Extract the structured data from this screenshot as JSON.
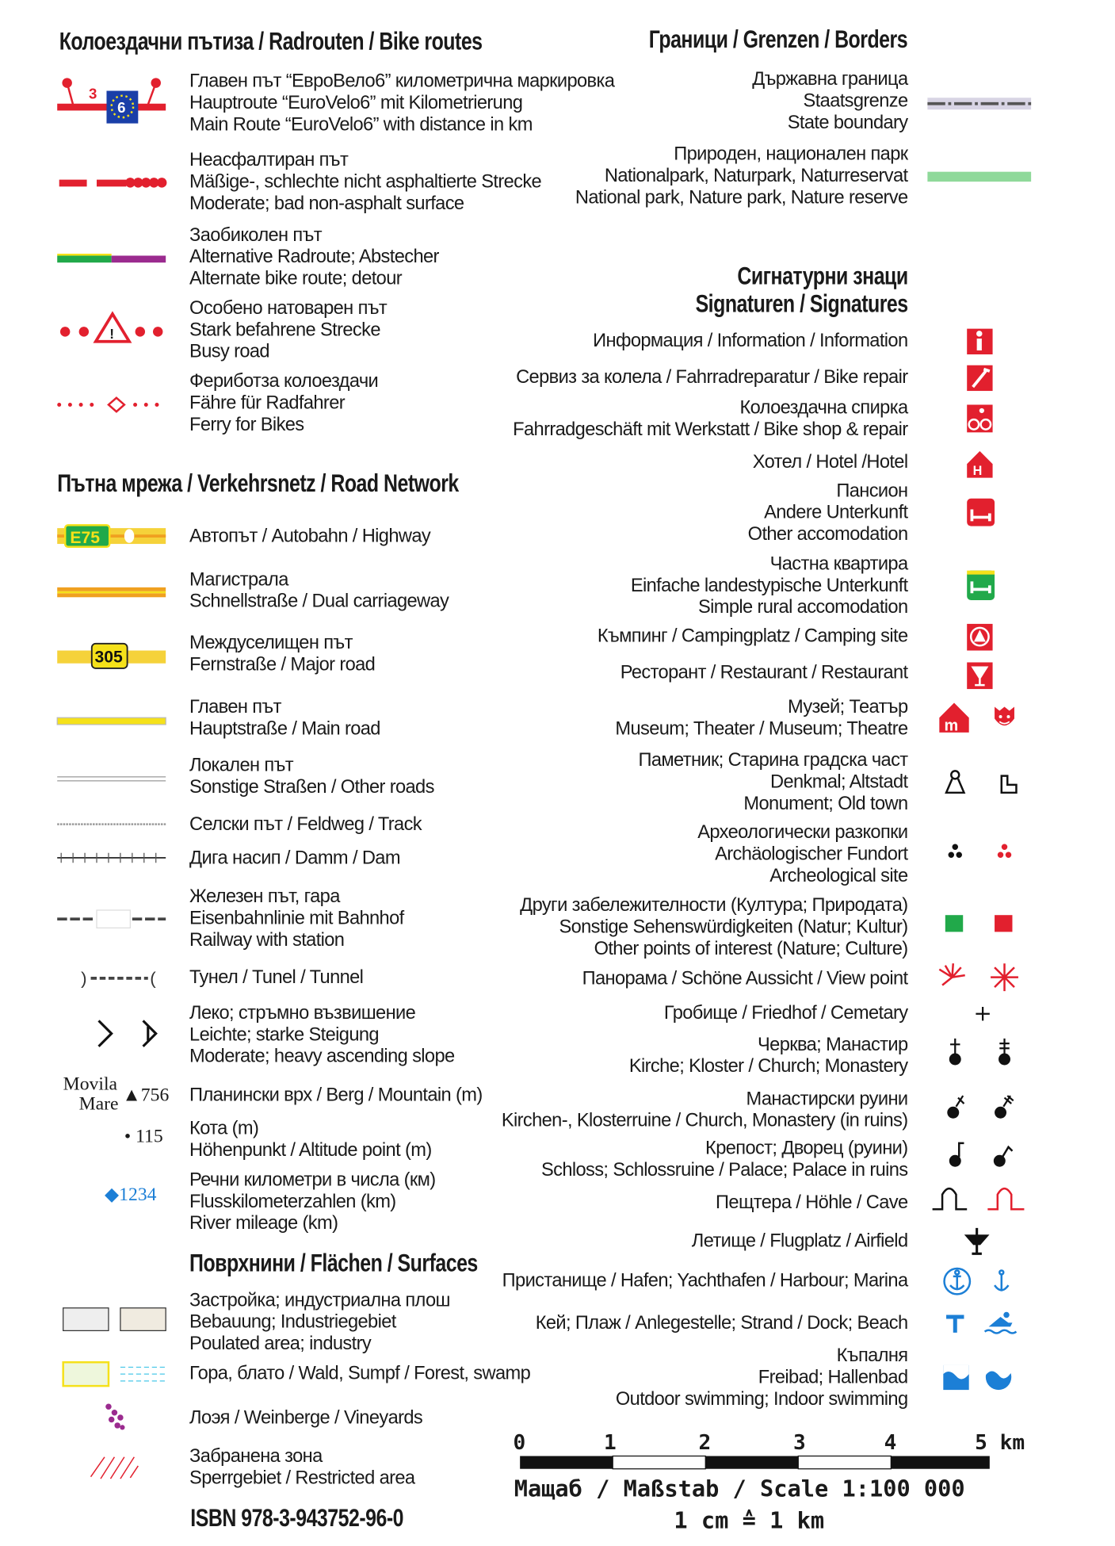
{
  "bike_routes": {
    "heading": "Колоездачни пътиза / Radrouten / Bike routes",
    "items": [
      {
        "symbol": "eurovelo-route",
        "lines": [
          "Главен път “ЕвроВело6” километрична маркировка",
          "Hauptroute “EuroVelo6” mit Kilometrierung",
          "Main Route “EuroVelo6” with distance in km"
        ]
      },
      {
        "symbol": "unpaved-road",
        "lines": [
          "Неасфалтиран път",
          "Mäßige-, schlechte nicht asphaltierte Strecke",
          "Moderate; bad non-asphalt surface"
        ]
      },
      {
        "symbol": "alternate-route",
        "lines": [
          "Заобиколен път",
          "Alternative Radroute; Abstecher",
          "Alternate bike route; detour"
        ]
      },
      {
        "symbol": "busy-road",
        "lines": [
          "Особено натоварен път",
          "Stark befahrene Strecke",
          "Busy road"
        ]
      },
      {
        "symbol": "ferry",
        "lines": [
          "Фериботза колоездачи",
          "Fähre für Radfahrer",
          "Ferry for Bikes"
        ]
      }
    ],
    "eurovelo_marker": {
      "km": "3",
      "route": "6"
    }
  },
  "borders": {
    "heading": "Граници / Grenzen / Borders",
    "items": [
      {
        "symbol": "state-boundary",
        "lines": [
          "Държавна граница",
          "Staatsgrenze",
          "State boundary"
        ]
      },
      {
        "symbol": "nature-park",
        "lines": [
          "Природен, национален парк",
          "Nationalpark, Naturpark, Naturreservat",
          "National park, Nature park, Nature reserve"
        ]
      }
    ]
  },
  "signatures": {
    "heading": [
      "Сигнатурни знаци",
      "Signaturen / Signatures"
    ],
    "items": [
      {
        "icons": [
          "information-icon"
        ],
        "lines": [
          "Информация / Information / Information"
        ]
      },
      {
        "icons": [
          "bike-repair-icon"
        ],
        "lines": [
          "Сервиз за колела / Fahrradreparatur / Bike repair"
        ]
      },
      {
        "icons": [
          "bike-shop-icon"
        ],
        "lines": [
          "Колоездачна спирка",
          "Fahrradgeschäft mit Werkstatt / Bike shop & repair"
        ]
      },
      {
        "icons": [
          "hotel-icon"
        ],
        "lines": [
          "Хотел / Hotel /Hotel"
        ]
      },
      {
        "icons": [
          "other-accommodation-icon"
        ],
        "lines": [
          "Пансион",
          "Andere Unterkunft",
          "Other accomodation"
        ]
      },
      {
        "icons": [
          "rural-accommodation-icon"
        ],
        "lines": [
          "Частна квартира",
          "Einfache landestypische Unterkunft",
          "Simple rural accomodation"
        ]
      },
      {
        "icons": [
          "camping-icon"
        ],
        "lines": [
          "Къмпинг / Campingplatz / Camping site"
        ]
      },
      {
        "icons": [
          "restaurant-icon"
        ],
        "lines": [
          "Ресторант / Restaurant /  Restaurant"
        ]
      },
      {
        "icons": [
          "museum-icon",
          "theatre-icon"
        ],
        "lines": [
          "Музей; Театър",
          "Museum; Theater / Museum; Theatre"
        ]
      },
      {
        "icons": [
          "monument-icon",
          "old-town-icon"
        ],
        "lines": [
          "Паметник; Старина градска част",
          "Denkmal; Altstadt",
          "Monument; Old town"
        ]
      },
      {
        "icons": [
          "archeological-site-icon",
          "archeological-site-red-icon"
        ],
        "lines": [
          "Археологически разкопки",
          "Archäologischer Fundort",
          "Archeological site"
        ]
      },
      {
        "icons": [
          "poi-nature-icon",
          "poi-culture-icon"
        ],
        "lines": [
          "Други забележителности (Култура; Природата)",
          "Sonstige Sehenswürdigkeiten (Natur; Kultur)",
          "Other points of interest (Nature; Culture)"
        ]
      },
      {
        "icons": [
          "viewpoint-icon",
          "viewpoint-panorama-icon"
        ],
        "lines": [
          "Панорама / Schöne Aussicht / View point"
        ]
      },
      {
        "icons": [
          "cemetery-icon"
        ],
        "lines": [
          "Гробище / Friedhof / Cemetary"
        ]
      },
      {
        "icons": [
          "church-icon",
          "monastery-icon"
        ],
        "lines": [
          "Черква; Манастир",
          "Kirche; Kloster / Church; Monastery"
        ]
      },
      {
        "icons": [
          "church-ruin-icon",
          "monastery-ruin-icon"
        ],
        "lines": [
          "Манастирски руини",
          "Kirchen-, Klosterruine / Church, Monastery (in ruins)"
        ]
      },
      {
        "icons": [
          "palace-icon",
          "palace-ruin-icon"
        ],
        "lines": [
          "Крепост; Дворец (руини)",
          "Schloss; Schlossruine / Palace; Palace in ruins"
        ]
      },
      {
        "icons": [
          "cave-icon",
          "cave-red-icon"
        ],
        "lines": [
          "Пещтера / Höhle / Cave"
        ]
      },
      {
        "icons": [
          "airfield-icon"
        ],
        "lines": [
          "Летище / Flugplatz / Airfield"
        ]
      },
      {
        "icons": [
          "harbour-icon",
          "marina-icon"
        ],
        "lines": [
          "Пристанище / Hafen; Yachthafen / Harbour; Marina"
        ]
      },
      {
        "icons": [
          "dock-icon",
          "beach-icon"
        ],
        "lines": [
          "Кей; Плаж / Anlegestelle; Strand / Dock; Beach"
        ]
      },
      {
        "icons": [
          "outdoor-swimming-icon",
          "indoor-swimming-icon"
        ],
        "lines": [
          "Къпалня",
          "Freibad; Hallenbad",
          "Outdoor swimming; Indoor swimming"
        ]
      }
    ]
  },
  "road_network": {
    "heading": "Пътна мрежа / Verkehrsnetz / Road Network",
    "highway_shield": "E75",
    "major_road_shield": "305",
    "items": [
      {
        "symbol": "highway",
        "lines": [
          "Автопът / Autobahn / Highway"
        ]
      },
      {
        "symbol": "dual-carriageway",
        "lines": [
          "Магистрала",
          "Schnellstraße / Dual carriageway"
        ]
      },
      {
        "symbol": "major-road",
        "lines": [
          "Междуселищен път",
          "Fernstraße / Major road"
        ]
      },
      {
        "symbol": "main-road",
        "lines": [
          "Главен път",
          "Hauptstraße / Main road"
        ]
      },
      {
        "symbol": "other-roads",
        "lines": [
          "Локален път",
          "Sonstige Straßen / Other roads"
        ]
      },
      {
        "symbol": "track",
        "lines": [
          "Селски път / Feldweg / Track"
        ]
      },
      {
        "symbol": "dam",
        "lines": [
          "Дига насип / Damm / Dam"
        ]
      },
      {
        "symbol": "railway",
        "lines": [
          "Железен път, гара",
          "Eisenbahnlinie mit Bahnhof",
          "Railway with station"
        ]
      },
      {
        "symbol": "tunnel",
        "lines": [
          "Тунел / Tunel / Tunnel"
        ]
      },
      {
        "symbol": "slope",
        "lines": [
          "Леко; стръмно възвишение",
          "Leichte; starke Steigung",
          "Moderate; heavy ascending slope"
        ]
      },
      {
        "symbol": "mountain",
        "lines": [
          "Планински врх / Berg / Mountain (m)"
        ]
      },
      {
        "symbol": "altitude-point",
        "lines": [
          "Кота (m)",
          "Höhenpunkt / Altitude point (m)"
        ]
      },
      {
        "symbol": "river-mileage",
        "lines": [
          "Речни километри в числа (км)",
          "Flusskilometerzahlen (km)",
          "River mileage (km)"
        ]
      }
    ],
    "mountain_example": {
      "name_1": "Movila",
      "name_2": "Mare",
      "value": "▲756"
    },
    "altitude_example": "• 115",
    "river_example": "◆1234"
  },
  "surfaces": {
    "heading": "Поврхнини / Flächen / Surfaces",
    "items": [
      {
        "symbol": "populated-area",
        "lines": [
          "Застройка; индустриална плош",
          "Bebauung; Industriegebiet",
          "Poulated area; industry"
        ]
      },
      {
        "symbol": "forest-swamp",
        "lines": [
          "Гора, блато / Wald, Sumpf / Forest, swamp"
        ]
      },
      {
        "symbol": "vineyards",
        "lines": [
          "Лоэя /  Weinberge / Vineyards"
        ]
      },
      {
        "symbol": "restricted-area",
        "lines": [
          "Забранена зона",
          "Sperrgebiet / Restricted area"
        ]
      }
    ]
  },
  "scale": {
    "ticks": [
      "0",
      "1",
      "2",
      "3",
      "4",
      "5 km"
    ],
    "label": "Мащаб / Maßstab / Scale 1:100 000",
    "equivalence": "1 cm ≙ 1 km"
  },
  "isbn": "ISBN 978-3-943752-96-0",
  "colors": {
    "red": "#e2202e",
    "blue": "#1c7fd6",
    "green": "#21a94a",
    "yellow": "#f5e11a",
    "purple": "#9b2b8f"
  }
}
